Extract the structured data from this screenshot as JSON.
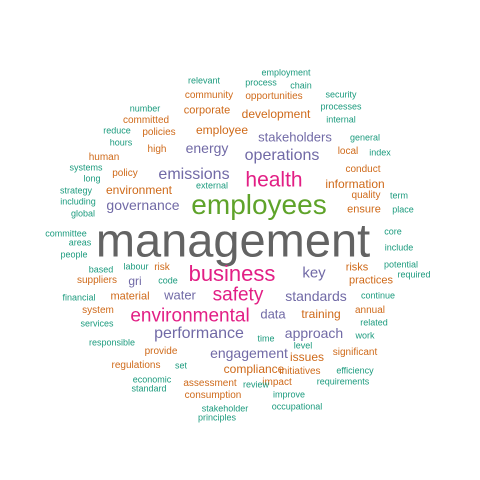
{
  "colors": {
    "grey": "#636363",
    "green": "#5fa32a",
    "pink": "#e21f85",
    "purple": "#716aa6",
    "orange": "#cf6a1a",
    "teal": "#1c9b7e"
  },
  "words": [
    {
      "text": "management",
      "color": "grey"
    },
    {
      "text": "employees",
      "color": "green"
    },
    {
      "text": "business",
      "color": "pink"
    },
    {
      "text": "health",
      "color": "pink"
    },
    {
      "text": "environmental",
      "color": "pink"
    },
    {
      "text": "safety",
      "color": "pink"
    },
    {
      "text": "operations",
      "color": "purple"
    },
    {
      "text": "emissions",
      "color": "purple"
    },
    {
      "text": "performance",
      "color": "purple"
    },
    {
      "text": "engagement",
      "color": "purple"
    },
    {
      "text": "standards",
      "color": "purple"
    },
    {
      "text": "governance",
      "color": "purple"
    },
    {
      "text": "key",
      "color": "purple"
    },
    {
      "text": "approach",
      "color": "purple"
    },
    {
      "text": "energy",
      "color": "purple"
    },
    {
      "text": "stakeholders",
      "color": "purple"
    },
    {
      "text": "water",
      "color": "purple"
    },
    {
      "text": "data",
      "color": "purple"
    },
    {
      "text": "gri",
      "color": "purple"
    },
    {
      "text": "information",
      "color": "orange"
    },
    {
      "text": "training",
      "color": "orange"
    },
    {
      "text": "employee",
      "color": "orange"
    },
    {
      "text": "development",
      "color": "orange"
    },
    {
      "text": "environment",
      "color": "orange"
    },
    {
      "text": "risks",
      "color": "orange"
    },
    {
      "text": "practices",
      "color": "orange"
    },
    {
      "text": "compliance",
      "color": "orange"
    },
    {
      "text": "issues",
      "color": "orange"
    },
    {
      "text": "ensure",
      "color": "orange"
    },
    {
      "text": "corporate",
      "color": "orange"
    },
    {
      "text": "material",
      "color": "orange"
    },
    {
      "text": "policies",
      "color": "orange"
    },
    {
      "text": "policy",
      "color": "orange"
    },
    {
      "text": "risk",
      "color": "orange"
    },
    {
      "text": "human",
      "color": "orange"
    },
    {
      "text": "suppliers",
      "color": "orange"
    },
    {
      "text": "provide",
      "color": "orange"
    },
    {
      "text": "regulations",
      "color": "orange"
    },
    {
      "text": "assessment",
      "color": "orange"
    },
    {
      "text": "consumption",
      "color": "orange"
    },
    {
      "text": "initiatives",
      "color": "orange"
    },
    {
      "text": "impact",
      "color": "orange"
    },
    {
      "text": "significant",
      "color": "orange"
    },
    {
      "text": "opportunities",
      "color": "orange"
    },
    {
      "text": "community",
      "color": "orange"
    },
    {
      "text": "committed",
      "color": "orange"
    },
    {
      "text": "high",
      "color": "orange"
    },
    {
      "text": "local",
      "color": "orange"
    },
    {
      "text": "conduct",
      "color": "orange"
    },
    {
      "text": "quality",
      "color": "orange"
    },
    {
      "text": "annual",
      "color": "orange"
    },
    {
      "text": "system",
      "color": "orange"
    },
    {
      "text": "occupational",
      "color": "teal"
    },
    {
      "text": "set",
      "color": "teal"
    },
    {
      "text": "relevant",
      "color": "teal"
    },
    {
      "text": "employment",
      "color": "teal"
    },
    {
      "text": "process",
      "color": "teal"
    },
    {
      "text": "chain",
      "color": "teal"
    },
    {
      "text": "security",
      "color": "teal"
    },
    {
      "text": "processes",
      "color": "teal"
    },
    {
      "text": "internal",
      "color": "teal"
    },
    {
      "text": "number",
      "color": "teal"
    },
    {
      "text": "reduce",
      "color": "teal"
    },
    {
      "text": "hours",
      "color": "teal"
    },
    {
      "text": "general",
      "color": "teal"
    },
    {
      "text": "index",
      "color": "teal"
    },
    {
      "text": "systems",
      "color": "teal"
    },
    {
      "text": "long",
      "color": "teal"
    },
    {
      "text": "strategy",
      "color": "teal"
    },
    {
      "text": "including",
      "color": "teal"
    },
    {
      "text": "global",
      "color": "teal"
    },
    {
      "text": "external",
      "color": "teal"
    },
    {
      "text": "term",
      "color": "teal"
    },
    {
      "text": "place",
      "color": "teal"
    },
    {
      "text": "committee",
      "color": "teal"
    },
    {
      "text": "areas",
      "color": "teal"
    },
    {
      "text": "people",
      "color": "teal"
    },
    {
      "text": "core",
      "color": "teal"
    },
    {
      "text": "include",
      "color": "teal"
    },
    {
      "text": "based",
      "color": "teal"
    },
    {
      "text": "labour",
      "color": "teal"
    },
    {
      "text": "code",
      "color": "teal"
    },
    {
      "text": "potential",
      "color": "teal"
    },
    {
      "text": "required",
      "color": "teal"
    },
    {
      "text": "financial",
      "color": "teal"
    },
    {
      "text": "continue",
      "color": "teal"
    },
    {
      "text": "services",
      "color": "teal"
    },
    {
      "text": "related",
      "color": "teal"
    },
    {
      "text": "work",
      "color": "teal"
    },
    {
      "text": "responsible",
      "color": "teal"
    },
    {
      "text": "time",
      "color": "teal"
    },
    {
      "text": "level",
      "color": "teal"
    },
    {
      "text": "economic",
      "color": "teal"
    },
    {
      "text": "standard",
      "color": "teal"
    },
    {
      "text": "efficiency",
      "color": "teal"
    },
    {
      "text": "requirements",
      "color": "teal"
    },
    {
      "text": "review",
      "color": "teal"
    },
    {
      "text": "improve",
      "color": "teal"
    },
    {
      "text": "stakeholder",
      "color": "teal"
    },
    {
      "text": "principles",
      "color": "teal"
    }
  ]
}
